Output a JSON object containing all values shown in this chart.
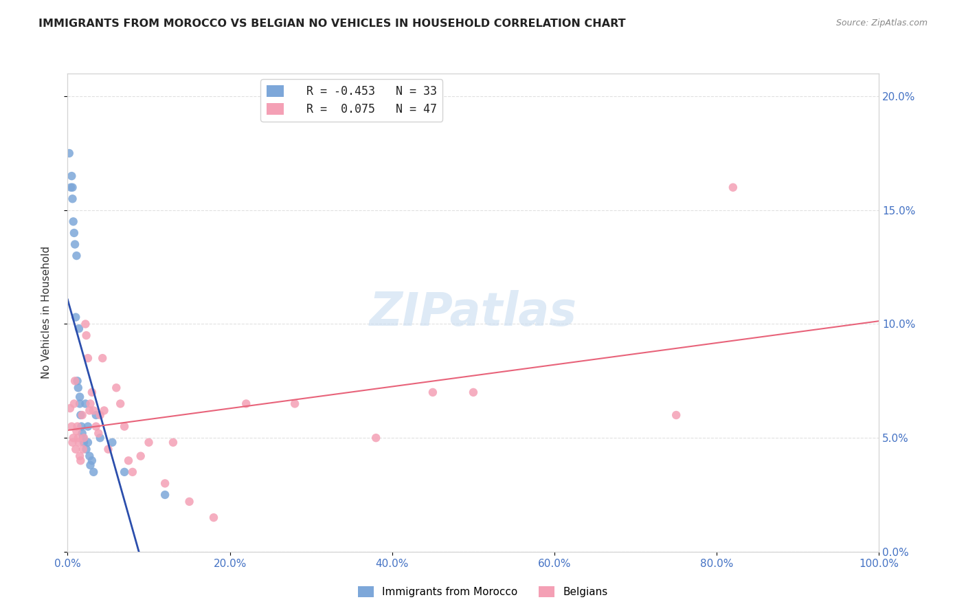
{
  "title": "IMMIGRANTS FROM MOROCCO VS BELGIAN NO VEHICLES IN HOUSEHOLD CORRELATION CHART",
  "source": "Source: ZipAtlas.com",
  "xlabel": "",
  "ylabel": "No Vehicles in Household",
  "watermark": "ZIPatlas",
  "right_axis_label_color": "#4472c4",
  "right_yticks": [
    0.0,
    5.0,
    10.0,
    15.0,
    20.0
  ],
  "right_ytick_labels": [
    "0.0%",
    "5.0%",
    "10.0%",
    "15.0%",
    "20.0%"
  ],
  "xlim": [
    0.0,
    1.0
  ],
  "ylim": [
    0.0,
    0.21
  ],
  "xtick_labels": [
    "0.0%",
    "20.0%",
    "40.0%",
    "60.0%",
    "80.0%",
    "100.0%"
  ],
  "legend_r1": "R = -0.453",
  "legend_n1": "N = 33",
  "legend_r2": "R =  0.075",
  "legend_n2": "N = 47",
  "legend_label1": "Immigrants from Morocco",
  "legend_label2": "Belgians",
  "blue_color": "#7da7d9",
  "pink_color": "#f4a0b5",
  "blue_line_color": "#2b4eac",
  "pink_line_color": "#e8637a",
  "scatter_size": 80,
  "morocco_x": [
    0.002,
    0.004,
    0.005,
    0.006,
    0.006,
    0.007,
    0.008,
    0.009,
    0.01,
    0.011,
    0.012,
    0.013,
    0.014,
    0.015,
    0.015,
    0.016,
    0.017,
    0.018,
    0.019,
    0.02,
    0.022,
    0.023,
    0.025,
    0.025,
    0.027,
    0.028,
    0.03,
    0.032,
    0.035,
    0.04,
    0.055,
    0.07,
    0.12
  ],
  "morocco_y": [
    0.175,
    0.16,
    0.165,
    0.155,
    0.16,
    0.145,
    0.14,
    0.135,
    0.103,
    0.13,
    0.075,
    0.072,
    0.098,
    0.065,
    0.068,
    0.06,
    0.055,
    0.052,
    0.05,
    0.048,
    0.065,
    0.045,
    0.055,
    0.048,
    0.042,
    0.038,
    0.04,
    0.035,
    0.06,
    0.05,
    0.048,
    0.035,
    0.025
  ],
  "belgian_x": [
    0.003,
    0.005,
    0.006,
    0.007,
    0.008,
    0.009,
    0.01,
    0.011,
    0.012,
    0.013,
    0.014,
    0.015,
    0.016,
    0.018,
    0.019,
    0.02,
    0.022,
    0.023,
    0.025,
    0.027,
    0.028,
    0.03,
    0.032,
    0.035,
    0.038,
    0.04,
    0.043,
    0.045,
    0.05,
    0.06,
    0.065,
    0.07,
    0.075,
    0.08,
    0.09,
    0.1,
    0.12,
    0.13,
    0.15,
    0.18,
    0.22,
    0.28,
    0.38,
    0.45,
    0.5,
    0.75,
    0.82
  ],
  "belgian_y": [
    0.063,
    0.055,
    0.048,
    0.05,
    0.065,
    0.075,
    0.045,
    0.053,
    0.055,
    0.05,
    0.048,
    0.042,
    0.04,
    0.06,
    0.045,
    0.05,
    0.1,
    0.095,
    0.085,
    0.062,
    0.065,
    0.07,
    0.062,
    0.055,
    0.052,
    0.06,
    0.085,
    0.062,
    0.045,
    0.072,
    0.065,
    0.055,
    0.04,
    0.035,
    0.042,
    0.048,
    0.03,
    0.048,
    0.022,
    0.015,
    0.065,
    0.065,
    0.05,
    0.07,
    0.07,
    0.06,
    0.16
  ]
}
